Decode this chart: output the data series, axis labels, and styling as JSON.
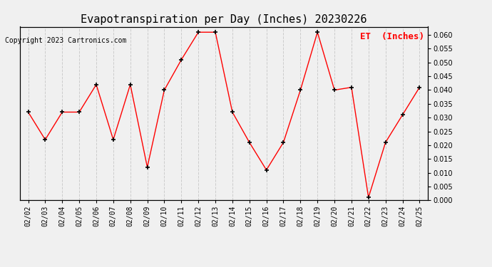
{
  "title": "Evapotranspiration per Day (Inches) 20230226",
  "copyright": "Copyright 2023 Cartronics.com",
  "legend_label": "ET  (Inches)",
  "dates": [
    "02/02",
    "02/03",
    "02/04",
    "02/05",
    "02/06",
    "02/07",
    "02/08",
    "02/09",
    "02/10",
    "02/11",
    "02/12",
    "02/13",
    "02/14",
    "02/15",
    "02/16",
    "02/17",
    "02/18",
    "02/19",
    "02/20",
    "02/21",
    "02/22",
    "02/23",
    "02/24",
    "02/25"
  ],
  "values": [
    0.032,
    0.022,
    0.032,
    0.032,
    0.042,
    0.022,
    0.042,
    0.012,
    0.04,
    0.051,
    0.061,
    0.061,
    0.032,
    0.021,
    0.011,
    0.021,
    0.04,
    0.061,
    0.04,
    0.041,
    0.001,
    0.021,
    0.031,
    0.041
  ],
  "ylim": [
    0.0,
    0.063
  ],
  "yticks": [
    0.0,
    0.005,
    0.01,
    0.015,
    0.02,
    0.025,
    0.03,
    0.035,
    0.04,
    0.045,
    0.05,
    0.055,
    0.06
  ],
  "line_color": "red",
  "marker_color": "black",
  "grid_color": "#cccccc",
  "background_color": "#f0f0f0",
  "title_fontsize": 11,
  "copyright_fontsize": 7,
  "legend_color": "red",
  "legend_fontsize": 9,
  "tick_fontsize": 7,
  "border_color": "#000000"
}
